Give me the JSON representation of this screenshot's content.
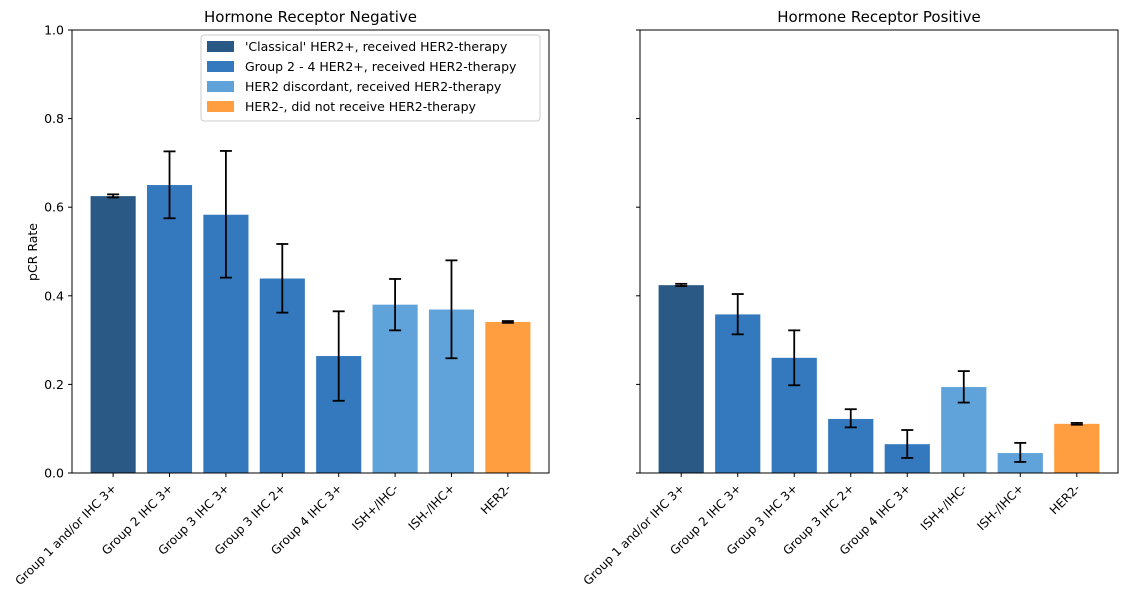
{
  "figure": {
    "ylabel": "pCR Rate"
  },
  "legend": {
    "entries": [
      {
        "label": "'Classical' HER2+, received HER2-therapy",
        "color": "#295984"
      },
      {
        "label": "Group 2 - 4 HER2+, received HER2-therapy",
        "color": "#3478bd"
      },
      {
        "label": "HER2 discordant, received HER2-therapy",
        "color": "#60a3da"
      },
      {
        "label": "HER2-, did not receive HER2-therapy",
        "color": "#ff9e40"
      }
    ]
  },
  "chart_data": [
    {
      "type": "bar",
      "title": "Hormone Receptor Negative",
      "ylabel": "pCR Rate",
      "ylim": [
        0,
        1.0
      ],
      "yticks": [
        "0.0",
        "0.2",
        "0.4",
        "0.6",
        "0.8",
        "1.0"
      ],
      "categories": [
        "Group 1 and/or IHC 3+",
        "Group 2 IHC 3+",
        "Group 3 IHC 3+",
        "Group 3 IHC 2+",
        "Group 4 IHC 3+",
        "ISH+/IHC-",
        "ISH-/IHC+",
        "HER2-"
      ],
      "values": [
        0.625,
        0.65,
        0.583,
        0.439,
        0.264,
        0.38,
        0.369,
        0.341
      ],
      "err_low": [
        0.622,
        0.575,
        0.441,
        0.362,
        0.163,
        0.322,
        0.259,
        0.339
      ],
      "err_high": [
        0.629,
        0.726,
        0.727,
        0.517,
        0.365,
        0.438,
        0.48,
        0.343
      ],
      "groups": [
        0,
        1,
        1,
        1,
        1,
        2,
        2,
        3
      ],
      "legend_position": "top-right"
    },
    {
      "type": "bar",
      "title": "Hormone Receptor Positive",
      "ylabel": "",
      "ylim": [
        0,
        1.0
      ],
      "categories": [
        "Group 1 and/or IHC 3+",
        "Group 2 IHC 3+",
        "Group 3 IHC 3+",
        "Group 3 IHC 2+",
        "Group 4 IHC 3+",
        "ISH+/IHC-",
        "ISH-/IHC+",
        "HER2-"
      ],
      "values": [
        0.424,
        0.358,
        0.26,
        0.122,
        0.065,
        0.194,
        0.045,
        0.111
      ],
      "err_low": [
        0.422,
        0.313,
        0.198,
        0.103,
        0.034,
        0.159,
        0.025,
        0.109
      ],
      "err_high": [
        0.427,
        0.404,
        0.322,
        0.144,
        0.097,
        0.23,
        0.068,
        0.113
      ],
      "groups": [
        0,
        1,
        1,
        1,
        1,
        2,
        2,
        3
      ]
    }
  ]
}
